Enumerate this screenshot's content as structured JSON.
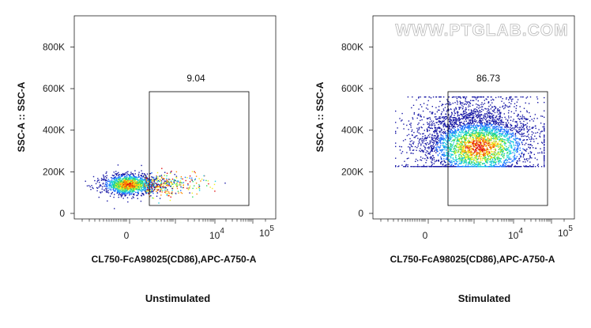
{
  "watermark": "WWW.PTGLAB.COM",
  "chart_data": [
    {
      "type": "scatter",
      "subtype": "flow-cytometry-density-dot-plot",
      "caption": "Unstimulated",
      "xlabel": "CL750-FcA98025(CD86),APC-A750-A",
      "ylabel": "SSC-A :: SSC-A",
      "x_scale": "biexponential",
      "x_ticks": [
        {
          "base": "0",
          "exp": ""
        },
        {
          "base": "10",
          "exp": "4"
        },
        {
          "base": "10",
          "exp": "5"
        }
      ],
      "y_ticks": [
        "0",
        "200K",
        "400K",
        "600K",
        "800K"
      ],
      "ylim": [
        0,
        950000
      ],
      "gate": {
        "label": "9.04",
        "x_min": 1000,
        "x_max": 60000,
        "y_min": 40000,
        "y_max": 580000
      },
      "population": {
        "x_center": -100,
        "y_center": 130000,
        "density_color_scale": [
          "#1a1aa6",
          "#1e6fff",
          "#1fd0e0",
          "#30d860",
          "#f0f020",
          "#ff8a00",
          "#e01010"
        ]
      }
    },
    {
      "type": "scatter",
      "subtype": "flow-cytometry-density-dot-plot",
      "caption": "Stimulated",
      "xlabel": "CL750-FcA98025(CD86),APC-A750-A",
      "ylabel": "SSC-A :: SSC-A",
      "x_scale": "biexponential",
      "x_ticks": [
        {
          "base": "0",
          "exp": ""
        },
        {
          "base": "10",
          "exp": "4"
        },
        {
          "base": "10",
          "exp": "5"
        }
      ],
      "y_ticks": [
        "0",
        "200K",
        "400K",
        "600K",
        "800K"
      ],
      "ylim": [
        0,
        950000
      ],
      "gate": {
        "label": "86.73",
        "x_min": 1000,
        "x_max": 60000,
        "y_min": 40000,
        "y_max": 580000
      },
      "population": {
        "x_center": 8000,
        "y_center": 340000,
        "density_color_scale": [
          "#1a1aa6",
          "#1e6fff",
          "#1fd0e0",
          "#30d860",
          "#f0f020",
          "#ff8a00",
          "#e01010"
        ]
      }
    }
  ]
}
